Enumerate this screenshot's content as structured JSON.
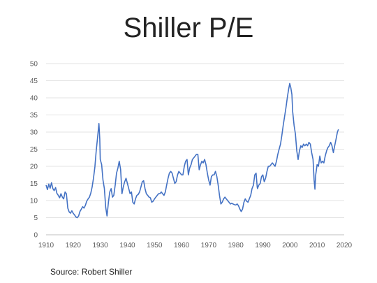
{
  "chart_data": {
    "type": "line",
    "title": "Shiller P/E",
    "source": "Source: Robert Shiller",
    "xlabel": "",
    "ylabel": "",
    "xlim": [
      1910,
      2020
    ],
    "ylim": [
      0,
      50
    ],
    "x_ticks": [
      1910,
      1920,
      1930,
      1940,
      1950,
      1960,
      1970,
      1980,
      1990,
      2000,
      2010,
      2020
    ],
    "y_ticks": [
      0,
      5,
      10,
      15,
      20,
      25,
      30,
      35,
      40,
      45,
      50
    ],
    "grid": "horizontal",
    "legend": "none",
    "series": [
      {
        "color": "#4472C4",
        "points": [
          [
            1910.0,
            14.5
          ],
          [
            1910.5,
            13.2
          ],
          [
            1911.0,
            14.8
          ],
          [
            1911.5,
            13.6
          ],
          [
            1912.0,
            15.2
          ],
          [
            1912.5,
            13.5
          ],
          [
            1913.0,
            12.9
          ],
          [
            1913.5,
            13.8
          ],
          [
            1914.0,
            12.1
          ],
          [
            1914.5,
            11.5
          ],
          [
            1915.0,
            10.8
          ],
          [
            1915.5,
            12.0
          ],
          [
            1916.0,
            11.0
          ],
          [
            1916.5,
            10.5
          ],
          [
            1917.0,
            12.5
          ],
          [
            1917.5,
            12.0
          ],
          [
            1918.0,
            7.8
          ],
          [
            1918.5,
            6.7
          ],
          [
            1919.0,
            6.3
          ],
          [
            1919.5,
            7.0
          ],
          [
            1920.0,
            6.3
          ],
          [
            1920.5,
            5.8
          ],
          [
            1921.0,
            5.2
          ],
          [
            1921.5,
            5.0
          ],
          [
            1922.0,
            5.5
          ],
          [
            1922.5,
            6.8
          ],
          [
            1923.0,
            7.5
          ],
          [
            1923.5,
            8.2
          ],
          [
            1924.0,
            7.8
          ],
          [
            1924.5,
            8.6
          ],
          [
            1925.0,
            9.8
          ],
          [
            1925.5,
            10.5
          ],
          [
            1926.0,
            11.0
          ],
          [
            1926.5,
            12.2
          ],
          [
            1927.0,
            14.0
          ],
          [
            1927.5,
            16.5
          ],
          [
            1928.0,
            19.8
          ],
          [
            1928.5,
            24.5
          ],
          [
            1929.0,
            28.5
          ],
          [
            1929.5,
            32.5
          ],
          [
            1929.8,
            28.0
          ],
          [
            1930.0,
            22.0
          ],
          [
            1930.5,
            20.5
          ],
          [
            1931.0,
            16.0
          ],
          [
            1931.5,
            13.5
          ],
          [
            1932.0,
            8.0
          ],
          [
            1932.5,
            5.5
          ],
          [
            1933.0,
            9.5
          ],
          [
            1933.5,
            12.5
          ],
          [
            1934.0,
            13.5
          ],
          [
            1934.5,
            11.0
          ],
          [
            1935.0,
            11.5
          ],
          [
            1935.5,
            14.5
          ],
          [
            1936.0,
            18.0
          ],
          [
            1936.5,
            19.5
          ],
          [
            1937.0,
            21.5
          ],
          [
            1937.5,
            19.0
          ],
          [
            1938.0,
            12.0
          ],
          [
            1938.5,
            14.0
          ],
          [
            1939.0,
            15.5
          ],
          [
            1939.5,
            16.5
          ],
          [
            1940.0,
            15.0
          ],
          [
            1940.5,
            13.5
          ],
          [
            1941.0,
            12.0
          ],
          [
            1941.5,
            12.5
          ],
          [
            1942.0,
            9.5
          ],
          [
            1942.5,
            9.0
          ],
          [
            1943.0,
            10.5
          ],
          [
            1943.5,
            11.5
          ],
          [
            1944.0,
            11.8
          ],
          [
            1944.5,
            12.5
          ],
          [
            1945.0,
            14.0
          ],
          [
            1945.5,
            15.5
          ],
          [
            1946.0,
            15.8
          ],
          [
            1946.5,
            13.5
          ],
          [
            1947.0,
            12.0
          ],
          [
            1947.5,
            11.5
          ],
          [
            1948.0,
            11.0
          ],
          [
            1948.5,
            10.8
          ],
          [
            1949.0,
            9.5
          ],
          [
            1949.5,
            9.8
          ],
          [
            1950.0,
            10.5
          ],
          [
            1950.5,
            11.0
          ],
          [
            1951.0,
            11.5
          ],
          [
            1951.5,
            12.0
          ],
          [
            1952.0,
            12.0
          ],
          [
            1952.5,
            12.5
          ],
          [
            1953.0,
            12.0
          ],
          [
            1953.5,
            11.5
          ],
          [
            1954.0,
            12.5
          ],
          [
            1954.5,
            14.5
          ],
          [
            1955.0,
            16.5
          ],
          [
            1955.5,
            18.0
          ],
          [
            1956.0,
            18.5
          ],
          [
            1956.5,
            18.0
          ],
          [
            1957.0,
            16.5
          ],
          [
            1957.5,
            15.0
          ],
          [
            1958.0,
            15.5
          ],
          [
            1958.5,
            17.5
          ],
          [
            1959.0,
            18.5
          ],
          [
            1959.5,
            18.0
          ],
          [
            1960.0,
            17.5
          ],
          [
            1960.5,
            17.5
          ],
          [
            1961.0,
            20.0
          ],
          [
            1961.5,
            21.5
          ],
          [
            1962.0,
            22.0
          ],
          [
            1962.5,
            17.5
          ],
          [
            1963.0,
            19.5
          ],
          [
            1963.5,
            20.5
          ],
          [
            1964.0,
            22.0
          ],
          [
            1964.5,
            22.5
          ],
          [
            1965.0,
            23.0
          ],
          [
            1965.5,
            23.5
          ],
          [
            1966.0,
            23.5
          ],
          [
            1966.5,
            19.0
          ],
          [
            1967.0,
            20.5
          ],
          [
            1967.5,
            21.5
          ],
          [
            1968.0,
            21.0
          ],
          [
            1968.5,
            22.0
          ],
          [
            1969.0,
            20.5
          ],
          [
            1969.5,
            18.0
          ],
          [
            1970.0,
            16.0
          ],
          [
            1970.5,
            14.5
          ],
          [
            1971.0,
            17.0
          ],
          [
            1971.5,
            17.5
          ],
          [
            1972.0,
            17.5
          ],
          [
            1972.5,
            18.5
          ],
          [
            1973.0,
            17.0
          ],
          [
            1973.5,
            14.5
          ],
          [
            1974.0,
            11.5
          ],
          [
            1974.5,
            9.0
          ],
          [
            1975.0,
            9.5
          ],
          [
            1975.5,
            10.5
          ],
          [
            1976.0,
            11.0
          ],
          [
            1976.5,
            10.5
          ],
          [
            1977.0,
            10.0
          ],
          [
            1977.5,
            9.5
          ],
          [
            1978.0,
            9.0
          ],
          [
            1978.5,
            9.2
          ],
          [
            1979.0,
            9.0
          ],
          [
            1979.5,
            8.8
          ],
          [
            1980.0,
            8.7
          ],
          [
            1980.5,
            9.0
          ],
          [
            1981.0,
            8.5
          ],
          [
            1981.5,
            7.5
          ],
          [
            1982.0,
            6.8
          ],
          [
            1982.5,
            7.5
          ],
          [
            1983.0,
            9.5
          ],
          [
            1983.5,
            10.5
          ],
          [
            1984.0,
            9.8
          ],
          [
            1984.5,
            9.5
          ],
          [
            1985.0,
            10.5
          ],
          [
            1985.5,
            11.5
          ],
          [
            1986.0,
            13.5
          ],
          [
            1986.5,
            14.5
          ],
          [
            1987.0,
            17.5
          ],
          [
            1987.5,
            18.0
          ],
          [
            1987.9,
            14.0
          ],
          [
            1988.0,
            13.5
          ],
          [
            1988.5,
            14.5
          ],
          [
            1989.0,
            15.0
          ],
          [
            1989.5,
            17.0
          ],
          [
            1990.0,
            17.5
          ],
          [
            1990.5,
            15.5
          ],
          [
            1991.0,
            16.5
          ],
          [
            1991.5,
            18.5
          ],
          [
            1992.0,
            20.0
          ],
          [
            1992.5,
            20.0
          ],
          [
            1993.0,
            20.5
          ],
          [
            1993.5,
            21.0
          ],
          [
            1994.0,
            20.5
          ],
          [
            1994.5,
            20.0
          ],
          [
            1995.0,
            21.5
          ],
          [
            1995.5,
            23.5
          ],
          [
            1996.0,
            25.0
          ],
          [
            1996.5,
            26.5
          ],
          [
            1997.0,
            29.0
          ],
          [
            1997.5,
            32.0
          ],
          [
            1998.0,
            34.5
          ],
          [
            1998.5,
            37.0
          ],
          [
            1999.0,
            40.0
          ],
          [
            1999.5,
            42.5
          ],
          [
            1999.9,
            44.2
          ],
          [
            2000.3,
            43.0
          ],
          [
            2000.7,
            41.0
          ],
          [
            2001.0,
            36.0
          ],
          [
            2001.5,
            32.0
          ],
          [
            2002.0,
            29.5
          ],
          [
            2002.5,
            24.5
          ],
          [
            2003.0,
            22.0
          ],
          [
            2003.5,
            24.5
          ],
          [
            2004.0,
            26.0
          ],
          [
            2004.5,
            25.5
          ],
          [
            2005.0,
            26.5
          ],
          [
            2005.5,
            26.0
          ],
          [
            2006.0,
            26.5
          ],
          [
            2006.5,
            26.0
          ],
          [
            2007.0,
            27.0
          ],
          [
            2007.5,
            26.5
          ],
          [
            2008.0,
            24.0
          ],
          [
            2008.5,
            22.0
          ],
          [
            2008.9,
            16.0
          ],
          [
            2009.2,
            13.3
          ],
          [
            2009.5,
            17.5
          ],
          [
            2010.0,
            20.5
          ],
          [
            2010.5,
            20.0
          ],
          [
            2011.0,
            23.0
          ],
          [
            2011.5,
            21.0
          ],
          [
            2012.0,
            21.5
          ],
          [
            2012.5,
            21.0
          ],
          [
            2013.0,
            23.0
          ],
          [
            2013.5,
            24.5
          ],
          [
            2014.0,
            25.5
          ],
          [
            2014.5,
            26.0
          ],
          [
            2015.0,
            27.0
          ],
          [
            2015.5,
            26.0
          ],
          [
            2016.0,
            24.0
          ],
          [
            2016.5,
            26.0
          ],
          [
            2017.0,
            28.0
          ],
          [
            2017.5,
            30.0
          ],
          [
            2017.9,
            30.8
          ]
        ]
      }
    ]
  }
}
